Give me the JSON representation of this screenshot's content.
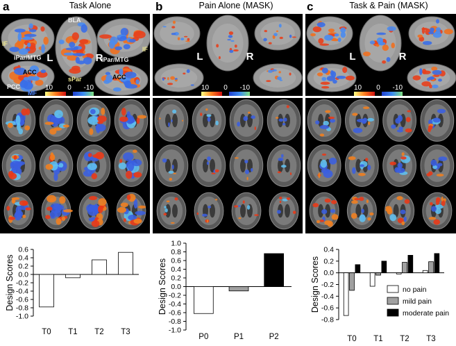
{
  "panels": [
    {
      "letter": "a",
      "title": "Task Alone",
      "blob_style": "task",
      "annotations": [
        "IF",
        "iPar/MTG",
        "BLA",
        "sPar",
        "iPar/MTG",
        "IF",
        "ACC",
        "PCC",
        "MF",
        "ACC"
      ],
      "hemi_labels": [
        "L",
        "R"
      ],
      "colorbar": [
        "10",
        "0",
        "-10"
      ]
    },
    {
      "letter": "b",
      "title": "Pain Alone (MASK)",
      "blob_style": "pain",
      "annotations": [],
      "hemi_labels": [
        "L",
        "R"
      ],
      "colorbar": [
        "10",
        "0",
        "-10"
      ]
    },
    {
      "letter": "c",
      "title": "Task & Pain (MASK)",
      "blob_style": "both",
      "annotations": [],
      "hemi_labels": [
        "L",
        "R"
      ],
      "colorbar": [
        "10",
        "0",
        "-10"
      ]
    }
  ],
  "chart_data": [
    {
      "type": "bar",
      "ylabel": "Design Scores",
      "ylim": [
        -1.0,
        0.6
      ],
      "yticks": [
        "-1.0",
        "-0.8",
        "-0.6",
        "-0.4",
        "-0.2",
        "0.0",
        "0.2",
        "0.4",
        "0.6"
      ],
      "categories": [
        "T0",
        "T1",
        "T2",
        "T3"
      ],
      "series": [
        {
          "values": [
            -0.78,
            -0.08,
            0.35,
            0.53
          ],
          "color": "#ffffff"
        }
      ]
    },
    {
      "type": "bar",
      "ylabel": "Design Scores",
      "ylim": [
        -1.0,
        1.0
      ],
      "yticks": [
        "-1.0",
        "-0.8",
        "-0.6",
        "-0.4",
        "-0.2",
        "0.0",
        "0.2",
        "0.4",
        "0.6",
        "0.8",
        "1.0"
      ],
      "categories": [
        "P0",
        "P1",
        "P2"
      ],
      "series": [
        {
          "values": [
            -0.62,
            -0.1,
            0.76
          ],
          "colors": [
            "#ffffff",
            "#a0a0a0",
            "#000000"
          ]
        }
      ]
    },
    {
      "type": "bar",
      "ylabel": "Design Scores",
      "ylim": [
        -0.8,
        0.4
      ],
      "yticks": [
        "-0.8",
        "-0.6",
        "-0.4",
        "-0.2",
        "0.0",
        "0.2",
        "0.4"
      ],
      "categories": [
        "T0",
        "T1",
        "T2",
        "T3"
      ],
      "series": [
        {
          "name": "no pain",
          "values": [
            -0.73,
            -0.23,
            -0.02,
            0.04
          ],
          "color": "#ffffff"
        },
        {
          "name": "mild pain",
          "values": [
            -0.3,
            -0.04,
            0.18,
            0.19
          ],
          "color": "#a0a0a0"
        },
        {
          "name": "moderate pain",
          "values": [
            0.14,
            0.2,
            0.3,
            0.33
          ],
          "color": "#000000"
        }
      ],
      "legend": "bottom-right"
    }
  ]
}
